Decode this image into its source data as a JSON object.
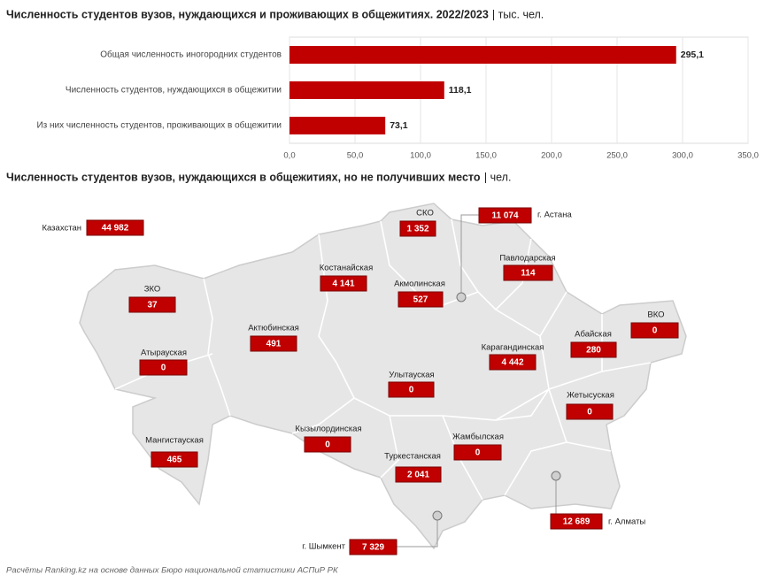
{
  "chart_data": [
    {
      "type": "hbar",
      "title": "Численность студентов вузов, нуждающихся и проживающих в общежитиях. 2022/2023",
      "unit": "| тыс. чел.",
      "categories": [
        "Общая численность иногородних студентов",
        "Численность студентов, нуждающихся в общежитии",
        "Из них численность студентов, проживающих в общежитии"
      ],
      "values": [
        295.1,
        118.1,
        73.1
      ],
      "value_labels": [
        "295,1",
        "118,1",
        "73,1"
      ],
      "color": "#c00000",
      "xlim": [
        0,
        350
      ],
      "xticks": [
        {
          "value": 0,
          "label": "0,0"
        },
        {
          "value": 50,
          "label": "50,0"
        },
        {
          "value": 100,
          "label": "100,0"
        },
        {
          "value": 150,
          "label": "150,0"
        },
        {
          "value": 200,
          "label": "200,0"
        },
        {
          "value": 250,
          "label": "250,0"
        },
        {
          "value": 300,
          "label": "300,0"
        },
        {
          "value": 350,
          "label": "350,0"
        }
      ],
      "grid": true
    },
    {
      "type": "map",
      "title": "Численность студентов вузов, нуждающихся в общежитиях, но не получивших место",
      "unit": "| чел.",
      "categories": [
        "Казахстан",
        "СКО",
        "г. Астана",
        "Костанайская",
        "Павлодарская",
        "ЗКО",
        "Акмолинская",
        "ВКО",
        "Актюбинская",
        "Абайская",
        "Карагандинская",
        "Атырауская",
        "Улытауская",
        "Жетысуская",
        "Кызылординская",
        "Мангистауская",
        "Жамбылская",
        "Туркестанская",
        "г. Алматы",
        "г. Шымкент"
      ],
      "values": [
        44982,
        1352,
        11074,
        4141,
        114,
        37,
        527,
        0,
        491,
        280,
        4442,
        0,
        0,
        0,
        0,
        465,
        0,
        2041,
        12689,
        7329
      ],
      "value_labels": [
        "44 982",
        "1 352",
        "11 074",
        "4 141",
        "114",
        "37",
        "527",
        "0",
        "491",
        "280",
        "4 442",
        "0",
        "0",
        "0",
        "0",
        "465",
        "0",
        "2 041",
        "12 689",
        "7 329"
      ],
      "color": "#c00000"
    }
  ],
  "source": "Расчёты Ranking.kz на основе данных Бюро национальной статистики АСПиР РК"
}
